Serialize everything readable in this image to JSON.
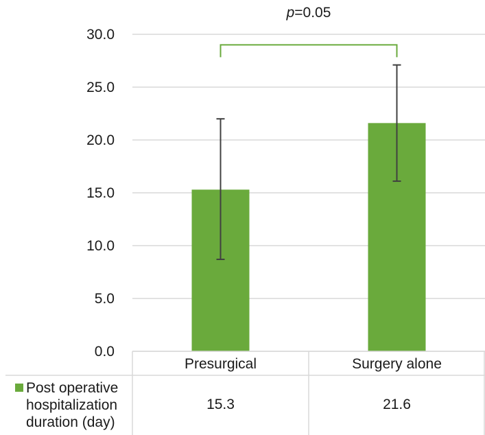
{
  "chart_data": {
    "type": "bar",
    "categories": [
      "Presurgical",
      "Surgery alone"
    ],
    "series": [
      {
        "name": "Post operative hospitalization duration (day)",
        "name_lines": [
          "Post operative",
          "hospitalization",
          "duration (day)"
        ],
        "values": [
          15.3,
          21.6
        ],
        "error_low": [
          8.7,
          16.1
        ],
        "error_high": [
          22.0,
          27.1
        ],
        "value_labels": [
          "15.3",
          "21.6"
        ],
        "color": "#6aaa3c"
      }
    ],
    "ylim": [
      0,
      30
    ],
    "yticks": [
      0,
      5,
      10,
      15,
      20,
      25,
      30
    ],
    "ytick_labels": [
      "0.0",
      "5.0",
      "10.0",
      "15.0",
      "20.0",
      "25.0",
      "30.0"
    ],
    "grid": true,
    "data_table": true,
    "significance": {
      "p_prefix": "p",
      "p_rest": "=0.05",
      "bracket_level": 29.0,
      "bracket_color": "#6aaa3c"
    },
    "colors": {
      "bar": "#6aaa3c",
      "grid": "#d9d9d9",
      "error_bar": "#404040"
    }
  }
}
